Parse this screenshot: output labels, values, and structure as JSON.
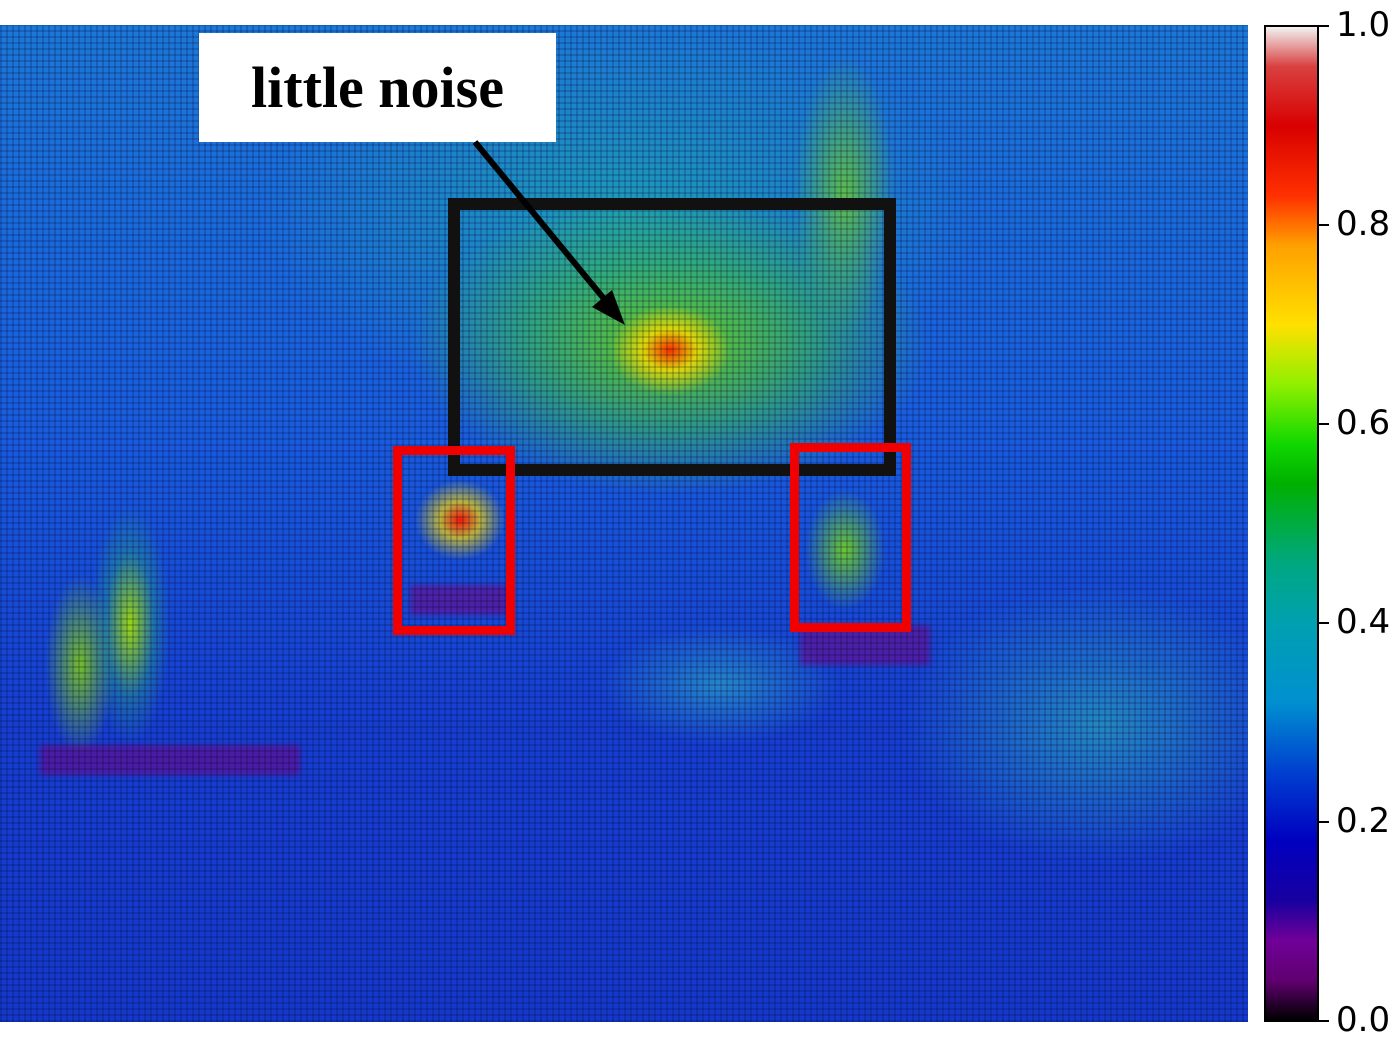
{
  "annotation": {
    "label": "little noise"
  },
  "colorbar": {
    "ticks": [
      "0.0",
      "0.2",
      "0.4",
      "0.6",
      "0.8",
      "1.0"
    ],
    "range": [
      0.0,
      1.0
    ],
    "colormap": "nipy_spectral-like"
  },
  "colors": {
    "highlight_box": "#111111",
    "region_boxes": "#f00000",
    "label_background": "#ffffff"
  }
}
